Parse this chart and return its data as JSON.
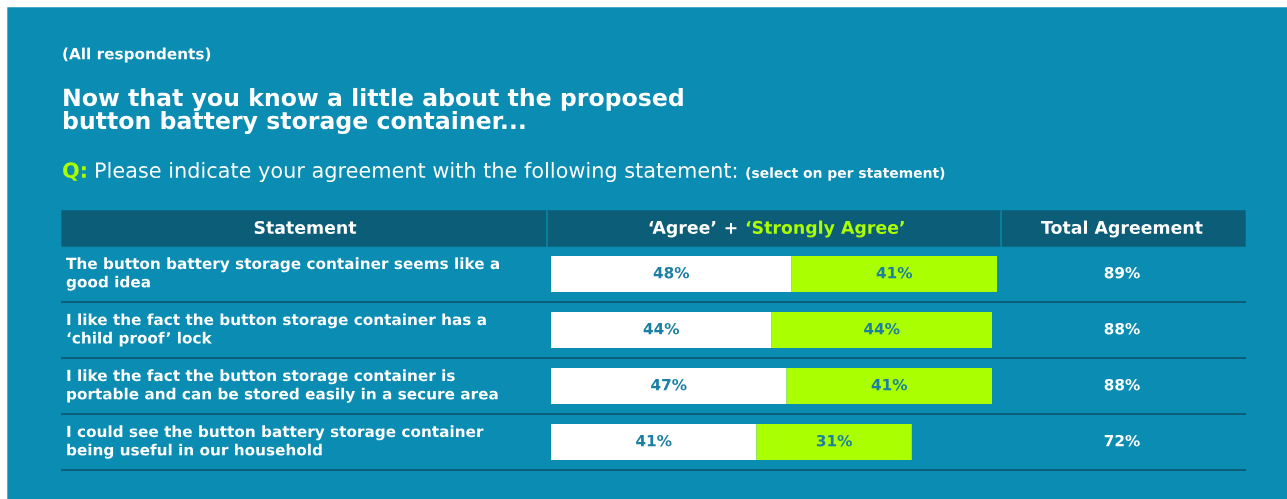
{
  "chart_data": {
    "type": "bar",
    "orientation": "horizontal",
    "stacked": true,
    "subtitle": "(All respondents)",
    "title": "Now that you know a little about the proposed\nbutton battery storage container...",
    "categories": [
      "The button battery storage container seems like a\ngood idea",
      "I like the fact the button storage container has a\n‘child proof’ lock",
      "I like the fact the button storage container is\nportable and can be stored easily in a secure area",
      "I could see the button battery storage container\nbeing useful in our household"
    ],
    "series": [
      {
        "name": "‘Agree’",
        "color": "#ffffff",
        "values": [
          48,
          44,
          47,
          41
        ],
        "value_labels": [
          "48%",
          "44%",
          "47%",
          "41%"
        ]
      },
      {
        "name": "‘Strongly Agree’",
        "color": "#aaff00",
        "values": [
          41,
          44,
          41,
          31
        ],
        "value_labels": [
          "41%",
          "44%",
          "41%",
          "31%"
        ]
      }
    ],
    "annotations": [
      "Q:",
      "Please indicate your agreement with the following statement:",
      "(select on per statement)",
      "Statement",
      "+",
      "Total Agreement",
      "89%",
      "88%",
      "88%",
      "72%"
    ],
    "legend": "top"
  }
}
